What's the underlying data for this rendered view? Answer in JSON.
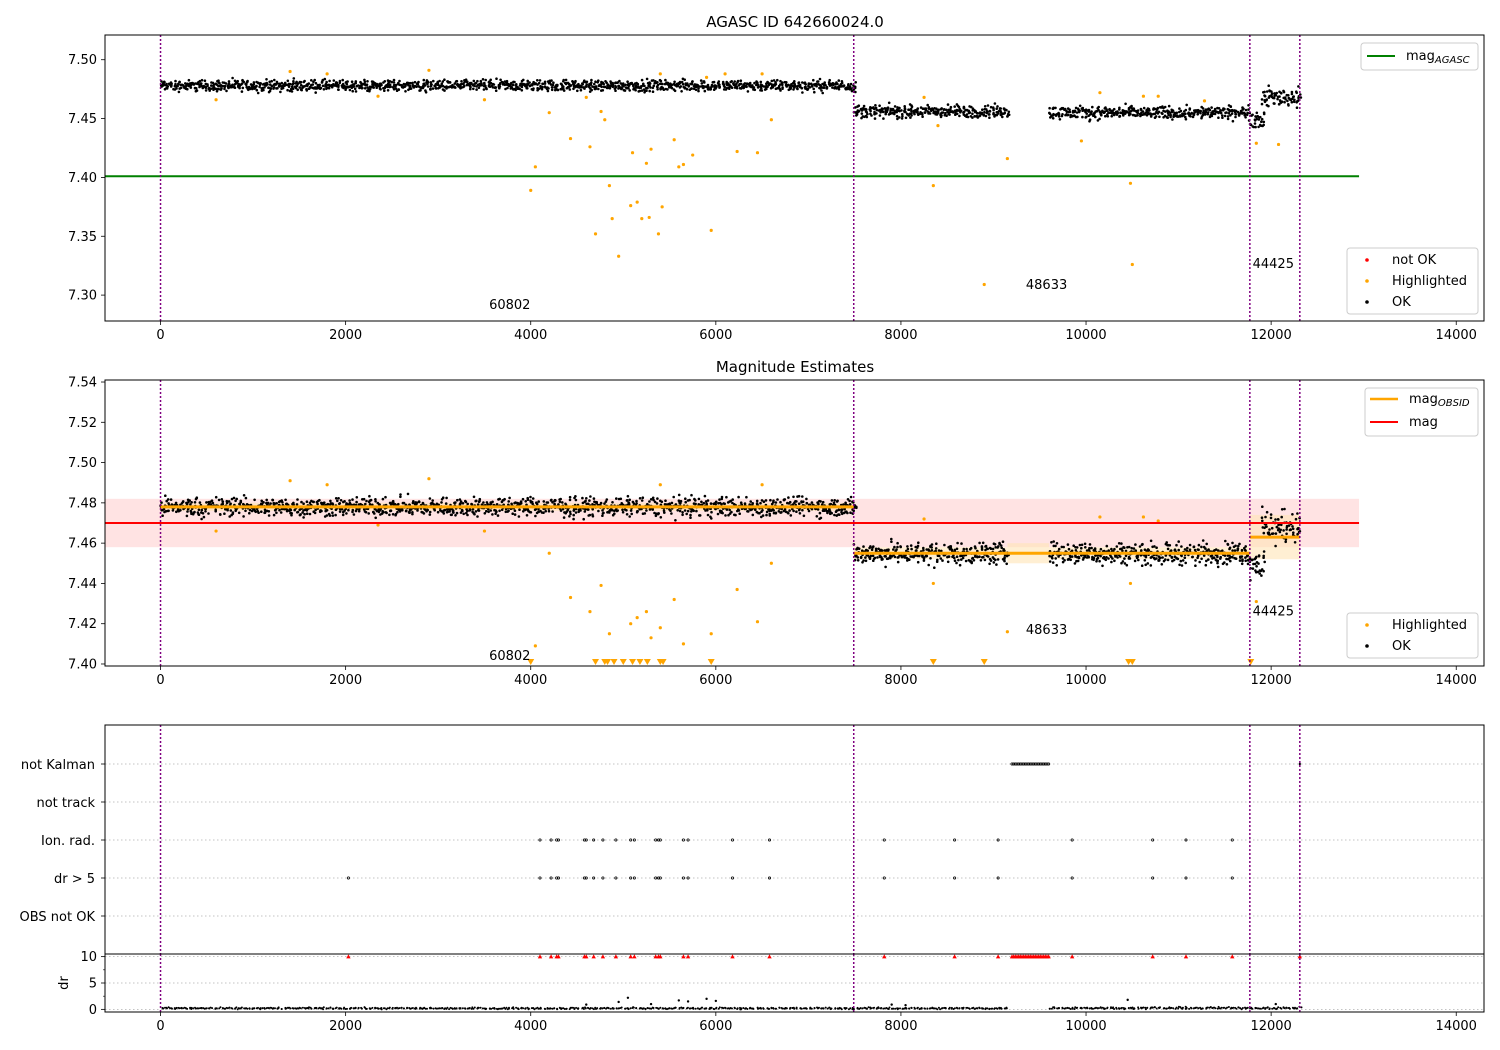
{
  "figure": {
    "background": "#ffffff"
  },
  "colors": {
    "ok": "#000000",
    "highlighted": "#ffa500",
    "not_ok": "#ff0000",
    "agasc_line": "#008000",
    "mag_line": "#ff0000",
    "mag_band": "#ffc0c0",
    "obsid_line": "#ffa500",
    "obsid_band": "#ffe4b5",
    "separator": "#800080",
    "grid": "#b0b0b0"
  },
  "chart_data": [
    {
      "type": "scatter",
      "title": "AGASC ID 642660024.0",
      "xlim": [
        -600,
        14300
      ],
      "ylim": [
        7.278,
        7.521
      ],
      "xticks": [
        0,
        2000,
        4000,
        6000,
        8000,
        10000,
        12000,
        14000
      ],
      "yticks": [
        7.3,
        7.35,
        7.4,
        7.45,
        7.5
      ],
      "ytick_labels": [
        "7.30",
        "7.35",
        "7.40",
        "7.45",
        "7.50"
      ],
      "obsid_boundaries": [
        0,
        7490,
        11770,
        12310
      ],
      "reference_lines": [
        {
          "name": "mag_AGASC",
          "y": 7.401,
          "x_range": [
            -600,
            12950
          ]
        }
      ],
      "legend_lines": {
        "position": "top-right",
        "entries": [
          {
            "label": "mag",
            "sub": "AGASC"
          }
        ]
      },
      "legend_points": {
        "position": "bottom-right",
        "entries": [
          "not OK",
          "Highlighted",
          "OK"
        ]
      },
      "ok_segments": [
        {
          "x": [
            0,
            7490
          ],
          "center": 7.478,
          "spread": 0.007
        },
        {
          "x": [
            7490,
            9150
          ],
          "center": 7.456,
          "spread": 0.008
        },
        {
          "x": [
            9600,
            11770
          ],
          "center": 7.455,
          "spread": 0.008
        },
        {
          "x": [
            11770,
            11900
          ],
          "center": 7.45,
          "spread": 0.012
        },
        {
          "x": [
            11900,
            12310
          ],
          "center": 7.468,
          "spread": 0.012
        }
      ],
      "highlighted_points": [
        [
          4000,
          7.389
        ],
        [
          4050,
          7.409
        ],
        [
          4430,
          7.433
        ],
        [
          4640,
          7.426
        ],
        [
          4700,
          7.352
        ],
        [
          4760,
          7.456
        ],
        [
          4800,
          7.449
        ],
        [
          4850,
          7.393
        ],
        [
          4880,
          7.365
        ],
        [
          4950,
          7.333
        ],
        [
          5080,
          7.376
        ],
        [
          5100,
          7.421
        ],
        [
          5150,
          7.379
        ],
        [
          5200,
          7.365
        ],
        [
          5250,
          7.412
        ],
        [
          5280,
          7.366
        ],
        [
          5300,
          7.424
        ],
        [
          5380,
          7.352
        ],
        [
          5420,
          7.375
        ],
        [
          5550,
          7.432
        ],
        [
          5600,
          7.409
        ],
        [
          5650,
          7.411
        ],
        [
          5750,
          7.419
        ],
        [
          5950,
          7.355
        ],
        [
          6230,
          7.422
        ],
        [
          6450,
          7.421
        ],
        [
          6600,
          7.449
        ],
        [
          8350,
          7.393
        ],
        [
          8900,
          7.309
        ],
        [
          9150,
          7.416
        ],
        [
          9950,
          7.431
        ],
        [
          10480,
          7.395
        ],
        [
          10500,
          7.326
        ],
        [
          11840,
          7.429
        ],
        [
          12080,
          7.428
        ],
        [
          600,
          7.466
        ],
        [
          1400,
          7.49
        ],
        [
          1800,
          7.488
        ],
        [
          2350,
          7.469
        ],
        [
          2900,
          7.491
        ],
        [
          3500,
          7.466
        ],
        [
          4200,
          7.455
        ],
        [
          4600,
          7.468
        ],
        [
          5400,
          7.488
        ],
        [
          5900,
          7.485
        ],
        [
          6100,
          7.488
        ],
        [
          6500,
          7.488
        ],
        [
          8250,
          7.468
        ],
        [
          8400,
          7.444
        ],
        [
          10150,
          7.472
        ],
        [
          10620,
          7.469
        ],
        [
          10780,
          7.469
        ],
        [
          11280,
          7.465
        ]
      ],
      "annotations": [
        {
          "text": "60802",
          "x": 3550,
          "y": 7.288
        },
        {
          "text": "48633",
          "x": 9350,
          "y": 7.305
        },
        {
          "text": "44425",
          "x": 11800,
          "y": 7.323
        }
      ]
    },
    {
      "type": "scatter",
      "title": "Magnitude Estimates",
      "xlim": [
        -600,
        14300
      ],
      "ylim": [
        7.399,
        7.541
      ],
      "xticks": [
        0,
        2000,
        4000,
        6000,
        8000,
        10000,
        12000,
        14000
      ],
      "yticks": [
        7.4,
        7.42,
        7.44,
        7.46,
        7.48,
        7.5,
        7.52,
        7.54
      ],
      "ytick_labels": [
        "7.40",
        "7.42",
        "7.44",
        "7.46",
        "7.48",
        "7.50",
        "7.52",
        "7.54"
      ],
      "obsid_boundaries": [
        0,
        7490,
        11770,
        12310
      ],
      "mag": {
        "value": 7.47,
        "band": [
          7.458,
          7.482
        ],
        "x_range": [
          -600,
          12950
        ]
      },
      "mag_obsid": [
        {
          "x": [
            0,
            7490
          ],
          "value": 7.478,
          "band": [
            7.476,
            7.48
          ]
        },
        {
          "x": [
            7490,
            9150
          ],
          "value": 7.455,
          "band": [
            7.452,
            7.458
          ]
        },
        {
          "x": [
            9150,
            9600
          ],
          "value": 7.455,
          "band": [
            7.45,
            7.46
          ]
        },
        {
          "x": [
            9600,
            11770
          ],
          "value": 7.455,
          "band": [
            7.452,
            7.458
          ]
        },
        {
          "x": [
            11770,
            12310
          ],
          "value": 7.463,
          "band": [
            7.452,
            7.474
          ]
        }
      ],
      "legend_lines": {
        "position": "top-right",
        "entries": [
          {
            "label": "mag",
            "sub": "OBSID"
          },
          {
            "label": "mag",
            "sub": ""
          }
        ]
      },
      "legend_points": {
        "position": "bottom-right",
        "entries": [
          "Highlighted",
          "OK"
        ]
      },
      "ok_segments": [
        {
          "x": [
            0,
            7490
          ],
          "center": 7.478,
          "spread": 0.007
        },
        {
          "x": [
            7490,
            9150
          ],
          "center": 7.455,
          "spread": 0.008
        },
        {
          "x": [
            9600,
            11770
          ],
          "center": 7.455,
          "spread": 0.008
        },
        {
          "x": [
            11770,
            11900
          ],
          "center": 7.45,
          "spread": 0.012
        },
        {
          "x": [
            11900,
            12310
          ],
          "center": 7.468,
          "spread": 0.012
        }
      ],
      "highlighted_points": [
        [
          4050,
          7.409
        ],
        [
          4430,
          7.433
        ],
        [
          4640,
          7.426
        ],
        [
          4760,
          7.439
        ],
        [
          4850,
          7.415
        ],
        [
          5080,
          7.42
        ],
        [
          5150,
          7.423
        ],
        [
          5250,
          7.426
        ],
        [
          5300,
          7.413
        ],
        [
          5400,
          7.418
        ],
        [
          5550,
          7.432
        ],
        [
          5650,
          7.41
        ],
        [
          5950,
          7.415
        ],
        [
          6230,
          7.437
        ],
        [
          6450,
          7.421
        ],
        [
          6600,
          7.45
        ],
        [
          8350,
          7.44
        ],
        [
          9150,
          7.416
        ],
        [
          10150,
          7.473
        ],
        [
          10480,
          7.44
        ],
        [
          11840,
          7.431
        ],
        [
          600,
          7.466
        ],
        [
          1400,
          7.491
        ],
        [
          1800,
          7.489
        ],
        [
          2350,
          7.469
        ],
        [
          2900,
          7.492
        ],
        [
          3500,
          7.466
        ],
        [
          4200,
          7.455
        ],
        [
          5400,
          7.489
        ],
        [
          6500,
          7.489
        ],
        [
          8250,
          7.472
        ],
        [
          10620,
          7.473
        ],
        [
          10780,
          7.471
        ]
      ],
      "clipped_points": [
        4000,
        4700,
        4800,
        4830,
        4900,
        5000,
        5100,
        5180,
        5260,
        5400,
        5430,
        5950,
        8350,
        8900,
        10460,
        10500,
        11780
      ],
      "annotations": [
        {
          "text": "60802",
          "x": 3550,
          "y": 7.402
        },
        {
          "text": "48633",
          "x": 9350,
          "y": 7.415
        },
        {
          "text": "44425",
          "x": 11800,
          "y": 7.424
        }
      ]
    },
    {
      "type": "scatter",
      "title": "",
      "xlim": [
        -600,
        14300
      ],
      "categories": [
        "not Kalman",
        "not track",
        "Ion. rad.",
        "dr > 5",
        "OBS not OK"
      ],
      "obsid_boundaries": [
        0,
        7490,
        11770,
        12310
      ],
      "flags": {
        "not Kalman": {
          "x_range": [
            9200,
            9600
          ],
          "extra": [
            12310
          ]
        },
        "not track": {
          "x_range": null,
          "extra": []
        },
        "Ion. rad.": {
          "points": [
            4100,
            4220,
            4280,
            4300,
            4580,
            4600,
            4680,
            4780,
            4920,
            5080,
            5120,
            5350,
            5380,
            5400,
            5650,
            5700,
            6180,
            6580,
            7820,
            8580,
            9050,
            9850,
            10720,
            11080,
            11580
          ]
        },
        "dr > 5": {
          "points": [
            2030,
            4100,
            4220,
            4280,
            4300,
            4580,
            4600,
            4680,
            4780,
            4920,
            5080,
            5120,
            5350,
            5380,
            5400,
            5650,
            5700,
            6180,
            6580,
            7820,
            8580,
            9050,
            9850,
            10720,
            11080,
            11580
          ]
        },
        "OBS not OK": {
          "points": []
        }
      }
    },
    {
      "type": "scatter",
      "title": "",
      "xlabel": "",
      "ylabel": "dr",
      "xlim": [
        -600,
        14300
      ],
      "ylim": [
        -0.5,
        10.5
      ],
      "xticks": [
        0,
        2000,
        4000,
        6000,
        8000,
        10000,
        12000,
        14000
      ],
      "yticks": [
        0,
        5,
        10
      ],
      "ytick_labels": [
        "0",
        "5",
        "10"
      ],
      "obsid_boundaries": [
        0,
        7490,
        11770,
        12310
      ],
      "dr_segments": [
        {
          "x": [
            0,
            9150
          ],
          "center": 0.2,
          "spread": 0.25
        },
        {
          "x": [
            9600,
            12310
          ],
          "center": 0.25,
          "spread": 0.3
        }
      ],
      "dr_outliers": [
        [
          4600,
          0.9
        ],
        [
          4950,
          1.4
        ],
        [
          5050,
          2.2
        ],
        [
          5300,
          1.0
        ],
        [
          5600,
          1.7
        ],
        [
          5700,
          1.5
        ],
        [
          5900,
          2.0
        ],
        [
          6000,
          1.6
        ],
        [
          7900,
          0.9
        ],
        [
          8050,
          0.8
        ],
        [
          10450,
          1.8
        ],
        [
          12050,
          1.0
        ]
      ],
      "capped_points": [
        2030,
        4100,
        4220,
        4280,
        4300,
        4580,
        4600,
        4680,
        4780,
        4920,
        5080,
        5120,
        5350,
        5380,
        5400,
        5650,
        5700,
        6180,
        6580,
        7820,
        8580,
        9050,
        9850,
        10720,
        11080,
        11580,
        12310
      ],
      "capped_range": [
        9200,
        9600
      ],
      "cap_value": 10
    }
  ]
}
